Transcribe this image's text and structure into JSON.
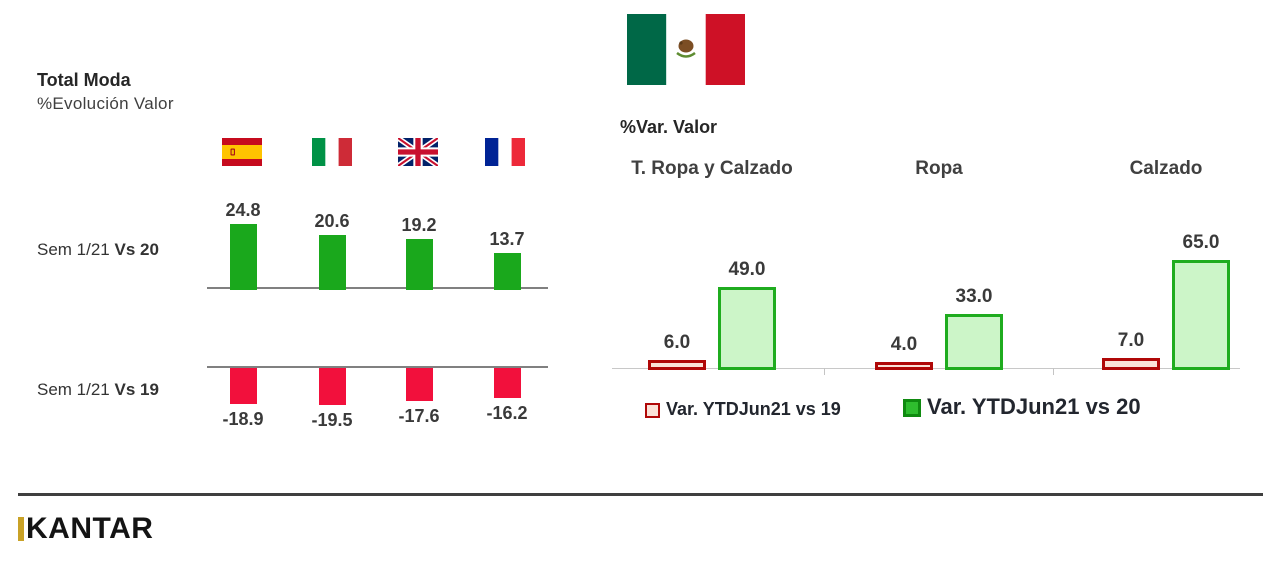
{
  "ui": {
    "left": {
      "title": "Total Moda",
      "subtitle": "%Evolución Valor",
      "rows": [
        {
          "prefix": "Sem 1/21 ",
          "bold": "Vs 20"
        },
        {
          "prefix": "Sem 1/21 ",
          "bold": "Vs 19"
        }
      ],
      "flag_icons": [
        "spain-flag",
        "italy-flag",
        "uk-flag",
        "france-flag"
      ]
    },
    "right": {
      "flag_icon": "mexico-flag",
      "header": "%Var. Valor"
    },
    "footer": {
      "logo_text": "KANTAR"
    }
  },
  "colors": {
    "green_bar": "#1AA81C",
    "red_bar": "#F2103C",
    "outline_red_border": "#B00808",
    "outline_red_fill": "#FBE2D8",
    "outline_green_border": "#1FAC1F",
    "outline_green_fill": "#CCF5C8",
    "axis_dark": "#808080",
    "axis_light": "#C8C8C8",
    "divider": "#3F3F3F",
    "logo_gold": "#C9A227"
  },
  "chart_data": [
    {
      "type": "bar",
      "title": "Total Moda",
      "subtitle": "%Evolución Valor",
      "categories": [
        "spain-flag",
        "italy-flag",
        "uk-flag",
        "france-flag"
      ],
      "series": [
        {
          "name": "Sem 1/21 Vs 20",
          "values": [
            24.8,
            20.6,
            19.2,
            13.7
          ],
          "color": "#1AA81C"
        },
        {
          "name": "Sem 1/21 Vs 19",
          "values": [
            -18.9,
            -19.5,
            -17.6,
            -16.2
          ],
          "color": "#F2103C"
        }
      ],
      "value_labels": "one-decimal",
      "grid": false,
      "axes": "baseline-only",
      "legend_position": "none"
    },
    {
      "type": "bar",
      "title": "%Var. Valor",
      "region_icon": "mexico-flag",
      "categories": [
        "T. Ropa y Calzado",
        "Ropa",
        "Calzado"
      ],
      "series": [
        {
          "name": "Var. YTDJun21 vs 19",
          "values": [
            6.0,
            4.0,
            7.0
          ],
          "fill": "#FBE2D8",
          "border": "#B00808"
        },
        {
          "name": "Var. YTDJun21 vs 20",
          "values": [
            49.0,
            33.0,
            65.0
          ],
          "fill": "#CCF5C8",
          "border": "#1FAC1F"
        }
      ],
      "value_labels": "one-decimal",
      "grid": false,
      "axes": "baseline-only",
      "legend_position": "bottom"
    }
  ]
}
